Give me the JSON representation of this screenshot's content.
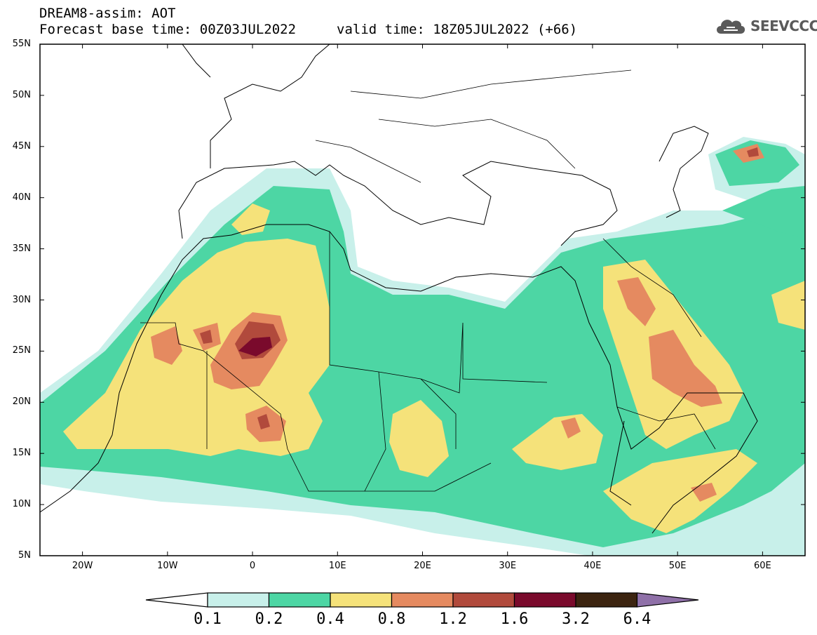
{
  "header": {
    "title": "DREAM8-assim: AOT",
    "base_time": "Forecast base time: 00Z03JUL2022",
    "valid_time": "valid time: 18Z05JUL2022 (+66)"
  },
  "logo": {
    "text": "SEEVCCC",
    "icon": "cloud-icon"
  },
  "map": {
    "lat_labels": [
      "55N",
      "50N",
      "45N",
      "40N",
      "35N",
      "30N",
      "25N",
      "20N",
      "15N",
      "10N",
      "5N"
    ],
    "lon_labels": [
      "20W",
      "10W",
      "0",
      "10E",
      "20E",
      "30E",
      "40E",
      "50E",
      "60E"
    ]
  },
  "colorbar": {
    "colors": [
      "#ffffff",
      "#c8f0ea",
      "#4dd6a4",
      "#f5e27a",
      "#e58a60",
      "#b14a3c",
      "#7a0a2c",
      "#3c2410",
      "#8f70a8"
    ],
    "labels": [
      "0.1",
      "0.2",
      "0.4",
      "0.8",
      "1.2",
      "1.6",
      "3.2",
      "6.4"
    ]
  }
}
